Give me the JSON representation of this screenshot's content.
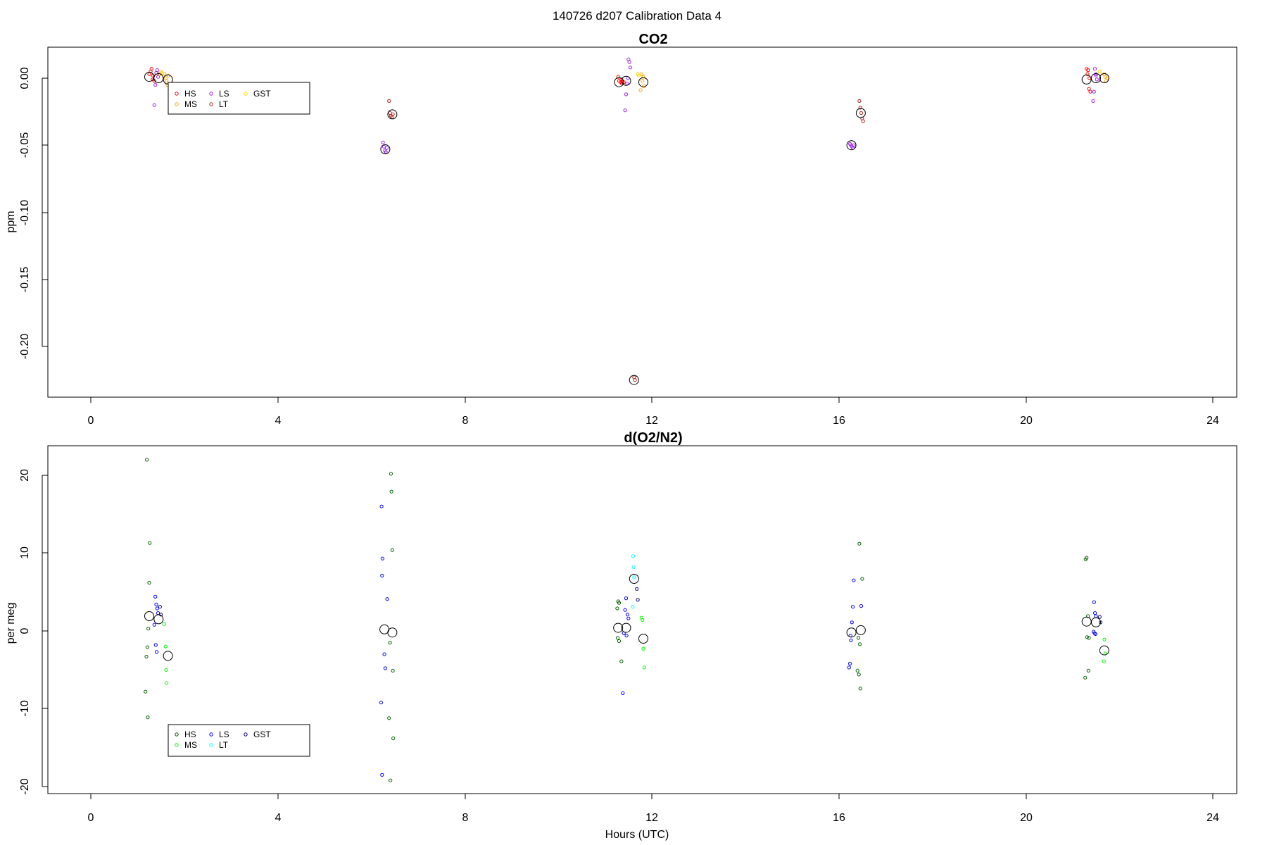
{
  "figure": {
    "title": "140726   d207   Calibration Data 4"
  },
  "chart_data": [
    {
      "type": "scatter",
      "title": "CO2",
      "xlabel": "",
      "ylabel": "ppm",
      "xlim": [
        -0.9,
        24.45
      ],
      "ylim": [
        -0.237,
        0.024
      ],
      "xticks": [
        0,
        4,
        8,
        12,
        16,
        20,
        24
      ],
      "yticks": [
        0.0,
        -0.05,
        -0.1,
        -0.15,
        -0.2
      ],
      "ytick_labels": [
        "0.00",
        "-0.05",
        "-0.10",
        "-0.15",
        "-0.20"
      ],
      "legend_position": "top-left",
      "legend": [
        {
          "label": "HS",
          "color": "#ff0000"
        },
        {
          "label": "MS",
          "color": "#ffa500"
        },
        {
          "label": "LS",
          "color": "#a020f0"
        },
        {
          "label": "LT",
          "color": "#b22222"
        },
        {
          "label": "GST",
          "color": "#ffd700"
        }
      ],
      "series": [
        {
          "name": "HS",
          "color": "#ff0000",
          "points": [
            [
              1.28,
              0.005
            ],
            [
              1.3,
              0.007
            ],
            [
              1.33,
              0.002
            ],
            [
              1.36,
              -0.002
            ],
            [
              1.25,
              0.003
            ],
            [
              1.32,
              -0.001
            ],
            [
              11.3,
              -0.002
            ],
            [
              11.33,
              -0.003
            ],
            [
              11.36,
              -0.004
            ],
            [
              11.28,
              0.001
            ],
            [
              11.4,
              -0.003
            ],
            [
              11.35,
              -0.001
            ],
            [
              21.3,
              0.007
            ],
            [
              21.33,
              0.006
            ],
            [
              21.35,
              -0.008
            ],
            [
              21.38,
              -0.01
            ],
            [
              21.32,
              0.003
            ],
            [
              21.36,
              0.0
            ]
          ]
        },
        {
          "name": "MS",
          "color": "#ffa500",
          "points": [
            [
              1.58,
              0.003
            ],
            [
              1.6,
              0.0
            ],
            [
              1.62,
              -0.002
            ],
            [
              1.64,
              -0.005
            ],
            [
              1.66,
              0.002
            ],
            [
              11.78,
              0.003
            ],
            [
              11.8,
              -0.002
            ],
            [
              11.83,
              -0.006
            ],
            [
              11.76,
              -0.009
            ],
            [
              11.82,
              0.001
            ],
            [
              21.68,
              0.003
            ],
            [
              21.7,
              0.001
            ],
            [
              21.72,
              -0.002
            ],
            [
              21.74,
              0.0
            ]
          ]
        },
        {
          "name": "LS",
          "color": "#a020f0",
          "points": [
            [
              1.4,
              0.004
            ],
            [
              1.42,
              0.006
            ],
            [
              1.44,
              0.001
            ],
            [
              1.46,
              0.003
            ],
            [
              1.36,
              -0.02
            ],
            [
              1.38,
              -0.005
            ],
            [
              6.25,
              -0.048
            ],
            [
              6.27,
              -0.051
            ],
            [
              6.29,
              -0.054
            ],
            [
              6.31,
              -0.055
            ],
            [
              6.33,
              -0.052
            ],
            [
              11.5,
              0.014
            ],
            [
              11.52,
              0.012
            ],
            [
              11.54,
              0.008
            ],
            [
              11.47,
              -0.004
            ],
            [
              11.45,
              -0.012
            ],
            [
              11.43,
              -0.024
            ],
            [
              11.49,
              0.0
            ],
            [
              16.24,
              -0.049
            ],
            [
              16.26,
              -0.05
            ],
            [
              16.28,
              -0.051
            ],
            [
              16.3,
              -0.052
            ],
            [
              16.32,
              -0.05
            ],
            [
              21.48,
              0.007
            ],
            [
              21.5,
              0.003
            ],
            [
              21.52,
              -0.001
            ],
            [
              21.46,
              -0.01
            ],
            [
              21.44,
              -0.017
            ],
            [
              21.5,
              0.002
            ]
          ]
        },
        {
          "name": "LT",
          "color": "#b22222",
          "points": [
            [
              6.38,
              -0.017
            ],
            [
              6.4,
              -0.026
            ],
            [
              6.42,
              -0.028
            ],
            [
              6.44,
              -0.029
            ],
            [
              6.46,
              -0.027
            ],
            [
              11.62,
              -0.223
            ],
            [
              11.64,
              -0.225
            ],
            [
              16.44,
              -0.017
            ],
            [
              16.46,
              -0.022
            ],
            [
              16.48,
              -0.026
            ],
            [
              16.5,
              -0.03
            ],
            [
              16.52,
              -0.032
            ]
          ]
        },
        {
          "name": "GST",
          "color": "#ffd700",
          "points": [
            [
              1.5,
              0.005
            ],
            [
              1.52,
              0.004
            ],
            [
              1.48,
              0.003
            ],
            [
              11.7,
              0.003
            ],
            [
              11.72,
              0.002
            ],
            [
              21.58,
              0.005
            ],
            [
              21.6,
              0.003
            ]
          ]
        },
        {
          "name": "",
          "color": "#000000",
          "marker": "mean",
          "points": [
            [
              1.25,
              0.001
            ],
            [
              1.45,
              0.0
            ],
            [
              1.65,
              -0.001
            ],
            [
              6.3,
              -0.053
            ],
            [
              6.45,
              -0.027
            ],
            [
              11.3,
              -0.003
            ],
            [
              11.45,
              -0.002
            ],
            [
              11.62,
              -0.225
            ],
            [
              11.82,
              -0.003
            ],
            [
              16.27,
              -0.05
            ],
            [
              16.47,
              -0.026
            ],
            [
              21.3,
              -0.001
            ],
            [
              21.5,
              0.0
            ],
            [
              21.68,
              0.0
            ]
          ]
        }
      ]
    },
    {
      "type": "scatter",
      "title": "d(O2/N2)",
      "xlabel": "Hours (UTC)",
      "ylabel": "per meg",
      "xlim": [
        -0.9,
        24.45
      ],
      "ylim": [
        -21.0,
        23.8
      ],
      "xticks": [
        0,
        4,
        8,
        12,
        16,
        20,
        24
      ],
      "yticks": [
        20,
        10,
        0,
        -10,
        -20
      ],
      "ytick_labels": [
        "20",
        "10",
        "0",
        "-10",
        "-20"
      ],
      "legend_position": "bottom-left",
      "legend": [
        {
          "label": "HS",
          "color": "#006400"
        },
        {
          "label": "MS",
          "color": "#00ff00"
        },
        {
          "label": "LS",
          "color": "#0000ff"
        },
        {
          "label": "LT",
          "color": "#00ffff"
        },
        {
          "label": "GST",
          "color": "#000080"
        }
      ],
      "series": [
        {
          "name": "HS",
          "color": "#006400",
          "points": [
            [
              1.2,
              22.0
            ],
            [
              1.26,
              11.3
            ],
            [
              1.25,
              6.2
            ],
            [
              1.23,
              0.3
            ],
            [
              1.21,
              -2.1
            ],
            [
              1.19,
              -3.3
            ],
            [
              1.17,
              -7.8
            ],
            [
              1.22,
              -11.1
            ],
            [
              6.42,
              20.2
            ],
            [
              6.43,
              17.9
            ],
            [
              6.45,
              10.4
            ],
            [
              6.4,
              -1.5
            ],
            [
              6.46,
              -5.1
            ],
            [
              6.38,
              -11.2
            ],
            [
              6.47,
              -13.8
            ],
            [
              6.41,
              -19.2
            ],
            [
              11.28,
              3.8
            ],
            [
              11.3,
              3.6
            ],
            [
              11.26,
              2.9
            ],
            [
              11.27,
              -0.9
            ],
            [
              11.3,
              -1.3
            ],
            [
              11.35,
              -3.9
            ],
            [
              16.44,
              11.2
            ],
            [
              16.5,
              6.7
            ],
            [
              16.42,
              -0.9
            ],
            [
              16.45,
              -1.7
            ],
            [
              16.4,
              -5.1
            ],
            [
              16.43,
              -5.6
            ],
            [
              16.46,
              -7.4
            ],
            [
              21.28,
              9.2
            ],
            [
              21.3,
              9.4
            ],
            [
              21.33,
              1.9
            ],
            [
              21.31,
              -0.8
            ],
            [
              21.35,
              -0.9
            ],
            [
              21.34,
              -5.1
            ],
            [
              21.27,
              -6.0
            ]
          ]
        },
        {
          "name": "MS",
          "color": "#00ff00",
          "points": [
            [
              1.57,
              0.9
            ],
            [
              1.6,
              -2.0
            ],
            [
              1.61,
              -5.0
            ],
            [
              1.62,
              -6.7
            ],
            [
              11.78,
              1.7
            ],
            [
              11.8,
              1.4
            ],
            [
              11.82,
              -2.3
            ],
            [
              11.84,
              -4.7
            ],
            [
              21.68,
              -1.1
            ],
            [
              21.7,
              -2.9
            ],
            [
              21.67,
              -3.9
            ]
          ]
        },
        {
          "name": "LS",
          "color": "#0000ff",
          "points": [
            [
              1.38,
              4.4
            ],
            [
              1.4,
              3.4
            ],
            [
              1.42,
              2.9
            ],
            [
              1.44,
              2.3
            ],
            [
              1.36,
              0.8
            ],
            [
              1.39,
              -1.8
            ],
            [
              1.41,
              -2.7
            ],
            [
              6.22,
              16.0
            ],
            [
              6.24,
              9.3
            ],
            [
              6.23,
              7.1
            ],
            [
              6.34,
              4.1
            ],
            [
              6.28,
              -3.0
            ],
            [
              6.3,
              -4.8
            ],
            [
              6.21,
              -9.2
            ],
            [
              6.23,
              -18.5
            ],
            [
              11.45,
              4.2
            ],
            [
              11.43,
              2.7
            ],
            [
              11.48,
              2.1
            ],
            [
              11.5,
              1.6
            ],
            [
              11.46,
              -0.6
            ],
            [
              11.4,
              -0.3
            ],
            [
              11.38,
              -8.0
            ],
            [
              16.32,
              6.5
            ],
            [
              16.48,
              3.2
            ],
            [
              16.3,
              3.1
            ],
            [
              16.28,
              1.1
            ],
            [
              16.25,
              -0.6
            ],
            [
              16.26,
              -1.2
            ],
            [
              16.24,
              -4.2
            ],
            [
              16.22,
              -4.7
            ],
            [
              21.46,
              3.7
            ],
            [
              21.48,
              2.3
            ],
            [
              21.5,
              1.9
            ],
            [
              21.45,
              -0.1
            ],
            [
              21.47,
              -0.3
            ],
            [
              21.49,
              -0.4
            ]
          ]
        },
        {
          "name": "LT",
          "color": "#00ffff",
          "points": [
            [
              11.6,
              9.6
            ],
            [
              11.61,
              8.2
            ],
            [
              11.62,
              6.9
            ],
            [
              11.59,
              3.1
            ]
          ]
        },
        {
          "name": "GST",
          "color": "#000080",
          "points": [
            [
              1.48,
              3.1
            ],
            [
              1.5,
              2.1
            ],
            [
              11.68,
              5.4
            ],
            [
              11.7,
              4.0
            ],
            [
              21.58,
              1.8
            ],
            [
              21.6,
              1.1
            ]
          ]
        },
        {
          "name": "",
          "color": "#000000",
          "marker": "mean",
          "points": [
            [
              1.25,
              1.9
            ],
            [
              1.45,
              1.5
            ],
            [
              1.65,
              -3.2
            ],
            [
              6.28,
              0.2
            ],
            [
              6.45,
              -0.2
            ],
            [
              11.28,
              0.4
            ],
            [
              11.45,
              0.4
            ],
            [
              11.62,
              6.7
            ],
            [
              11.82,
              -1.0
            ],
            [
              16.27,
              -0.2
            ],
            [
              16.47,
              0.1
            ],
            [
              21.3,
              1.2
            ],
            [
              21.5,
              1.1
            ],
            [
              21.68,
              -2.5
            ]
          ]
        }
      ]
    }
  ]
}
